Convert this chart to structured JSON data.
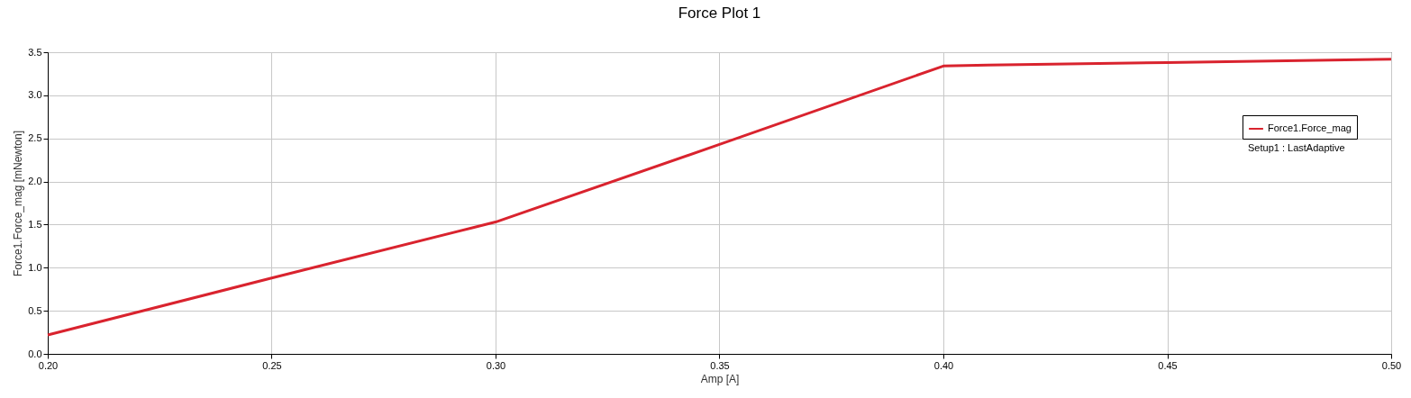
{
  "chart_data": {
    "type": "line",
    "title": "Force Plot 1",
    "xlabel": "Amp [A]",
    "ylabel": "Force1.Force_mag [mNewton]",
    "x": [
      0.2,
      0.25,
      0.3,
      0.35,
      0.4,
      0.41,
      0.45,
      0.5
    ],
    "series": [
      {
        "name": "Force1.Force_mag",
        "color": "#d9232e",
        "values": [
          0.22,
          0.88,
          1.53,
          2.43,
          3.34,
          3.35,
          3.38,
          3.42
        ]
      }
    ],
    "annotations": [
      "Setup1 : LastAdaptive"
    ],
    "xlim": [
      0.2,
      0.5
    ],
    "xticks": [
      {
        "value": 0.2,
        "label": "0.20"
      },
      {
        "value": 0.25,
        "label": "0.25"
      },
      {
        "value": 0.3,
        "label": "0.30"
      },
      {
        "value": 0.35,
        "label": "0.35"
      },
      {
        "value": 0.4,
        "label": "0.40"
      },
      {
        "value": 0.45,
        "label": "0.45"
      },
      {
        "value": 0.5,
        "label": "0.50"
      }
    ],
    "ylim": [
      0,
      3.5
    ],
    "yticks": [
      {
        "value": 0,
        "label": "0.0"
      },
      {
        "value": 0.5,
        "label": "0.5"
      },
      {
        "value": 1,
        "label": "1.0"
      },
      {
        "value": 1.5,
        "label": "1.5"
      },
      {
        "value": 2,
        "label": "2.0"
      },
      {
        "value": 2.5,
        "label": "2.5"
      },
      {
        "value": 3,
        "label": "3.0"
      },
      {
        "value": 3.5,
        "label": "3.5"
      }
    ],
    "grid": true,
    "legend": "top right",
    "marker": "none",
    "line_style": "solid"
  }
}
